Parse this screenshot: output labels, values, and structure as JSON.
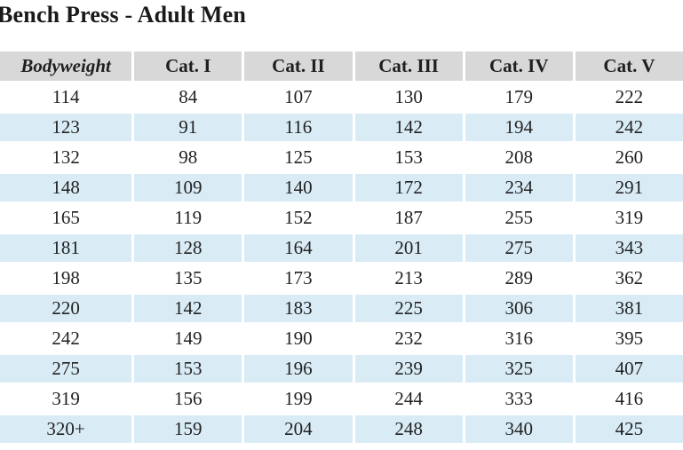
{
  "page": {
    "title": "Bench Press - Adult Men"
  },
  "colors": {
    "header_bg": "#d8d8d8",
    "stripe_bg": "#d9ecf6",
    "text": "#222222",
    "title_text": "#1a1a1a"
  },
  "table": {
    "columns": [
      "Bodyweight",
      "Cat. I",
      "Cat. II",
      "Cat. III",
      "Cat. IV",
      "Cat. V"
    ],
    "rows": [
      [
        "114",
        "84",
        "107",
        "130",
        "179",
        "222"
      ],
      [
        "123",
        "91",
        "116",
        "142",
        "194",
        "242"
      ],
      [
        "132",
        "98",
        "125",
        "153",
        "208",
        "260"
      ],
      [
        "148",
        "109",
        "140",
        "172",
        "234",
        "291"
      ],
      [
        "165",
        "119",
        "152",
        "187",
        "255",
        "319"
      ],
      [
        "181",
        "128",
        "164",
        "201",
        "275",
        "343"
      ],
      [
        "198",
        "135",
        "173",
        "213",
        "289",
        "362"
      ],
      [
        "220",
        "142",
        "183",
        "225",
        "306",
        "381"
      ],
      [
        "242",
        "149",
        "190",
        "232",
        "316",
        "395"
      ],
      [
        "275",
        "153",
        "196",
        "239",
        "325",
        "407"
      ],
      [
        "319",
        "156",
        "199",
        "244",
        "333",
        "416"
      ],
      [
        "320+",
        "159",
        "204",
        "248",
        "340",
        "425"
      ]
    ]
  }
}
